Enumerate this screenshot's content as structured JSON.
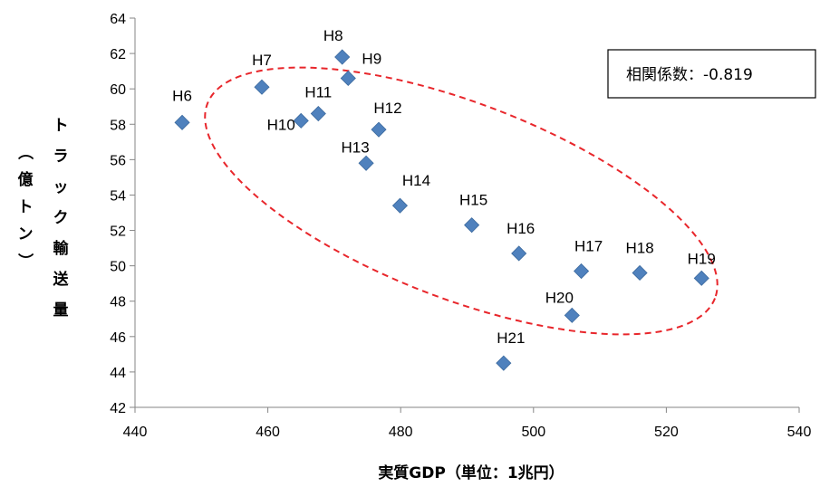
{
  "chart_data": {
    "type": "scatter",
    "xlabel": "実質GDP（単位：1兆円）",
    "ylabel_main": "トラック輸送量",
    "ylabel_unit": "（億トン）",
    "xlim": [
      440,
      540
    ],
    "ylim": [
      42,
      64
    ],
    "xticks": [
      440,
      460,
      480,
      500,
      520,
      540
    ],
    "yticks": [
      42,
      44,
      46,
      48,
      50,
      52,
      54,
      56,
      58,
      60,
      62,
      64
    ],
    "grid": false,
    "marker": "diamond",
    "marker_color": "#4f81bd",
    "points": [
      {
        "label": "H6",
        "x": 447.1,
        "y": 58.1
      },
      {
        "label": "H7",
        "x": 459.1,
        "y": 60.1
      },
      {
        "label": "H8",
        "x": 471.2,
        "y": 61.8
      },
      {
        "label": "H9",
        "x": 472.1,
        "y": 60.6
      },
      {
        "label": "H10",
        "x": 465.0,
        "y": 58.2
      },
      {
        "label": "H11",
        "x": 467.6,
        "y": 58.6
      },
      {
        "label": "H12",
        "x": 476.7,
        "y": 57.7
      },
      {
        "label": "H13",
        "x": 474.8,
        "y": 55.8
      },
      {
        "label": "H14",
        "x": 479.9,
        "y": 53.4
      },
      {
        "label": "H15",
        "x": 490.7,
        "y": 52.3
      },
      {
        "label": "H16",
        "x": 497.8,
        "y": 50.7
      },
      {
        "label": "H17",
        "x": 507.2,
        "y": 49.7
      },
      {
        "label": "H18",
        "x": 516.0,
        "y": 49.6
      },
      {
        "label": "H19",
        "x": 525.3,
        "y": 49.3
      },
      {
        "label": "H20",
        "x": 505.8,
        "y": 47.2
      },
      {
        "label": "H21",
        "x": 495.5,
        "y": 44.5
      }
    ],
    "annotation": {
      "label": "相関係数",
      "separator": "：",
      "value": "-0.819",
      "ellipse_color": "#e8262b",
      "ellipse_style": "dashed"
    }
  }
}
